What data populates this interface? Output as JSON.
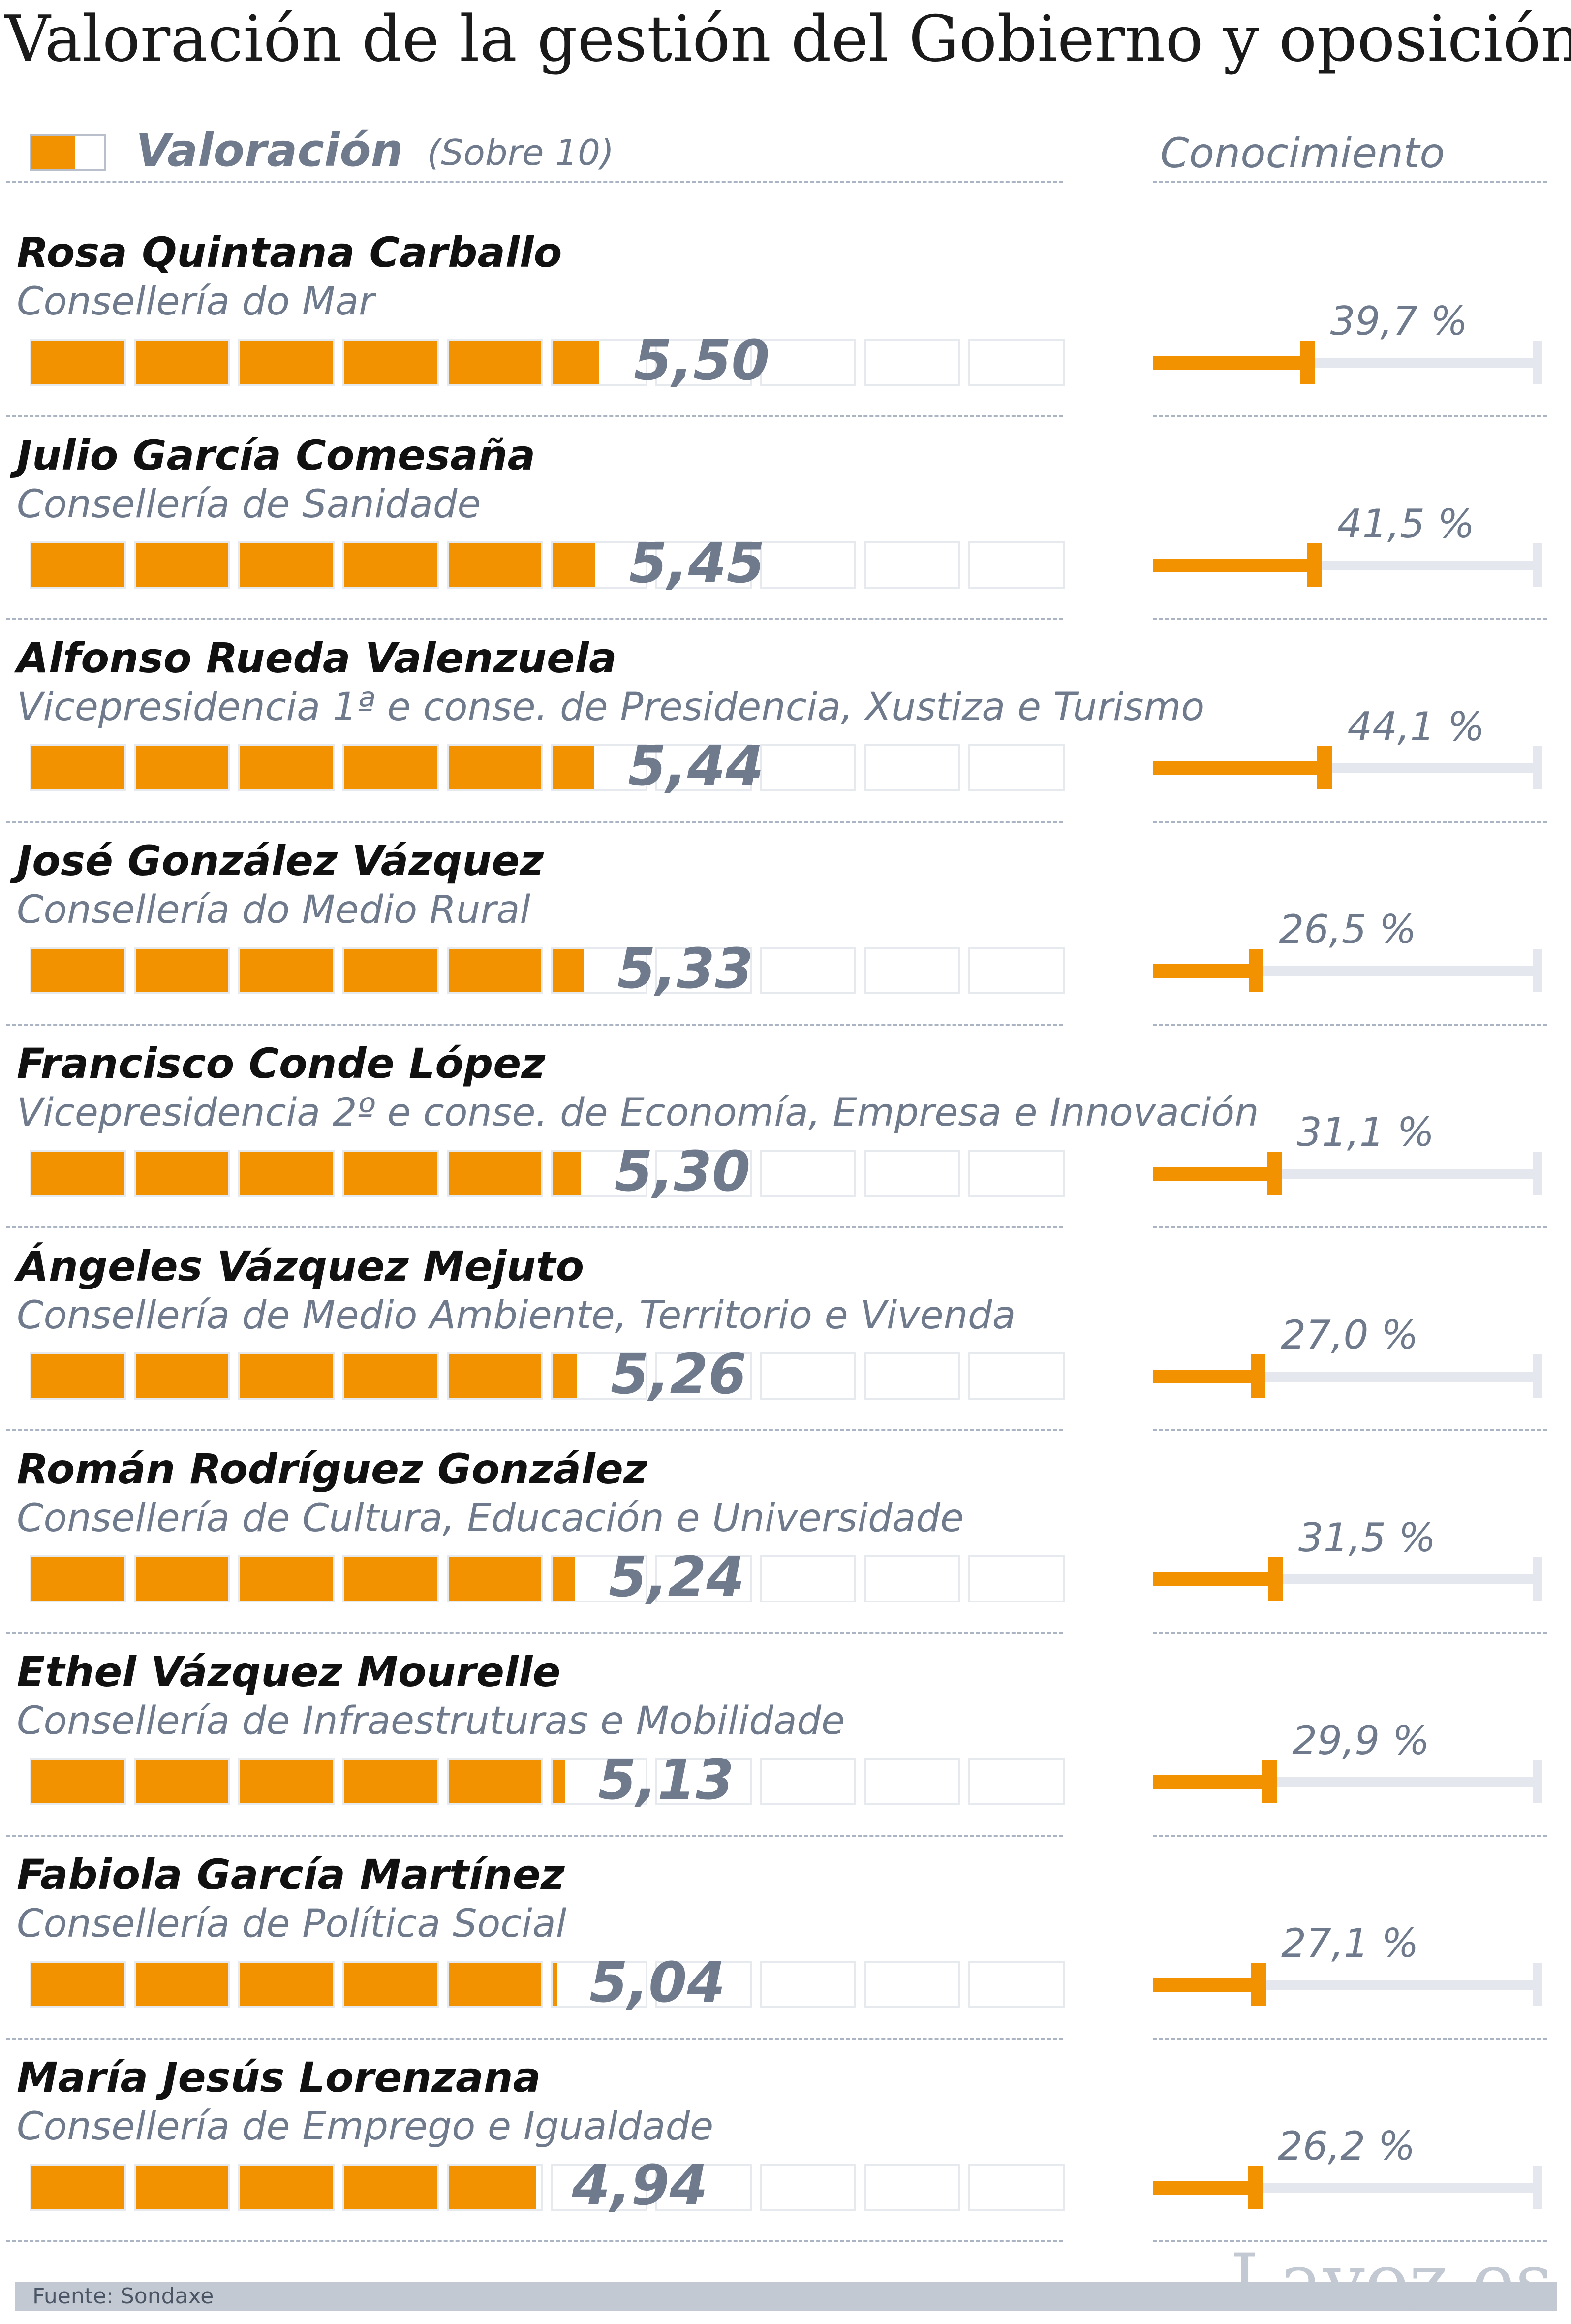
{
  "title": "Valoración de la gestión del Gobierno y oposición",
  "legend": {
    "label": "Valoración",
    "sublabel": "(Sobre 10)",
    "right_label": "Conocimiento"
  },
  "footer": {
    "source": "Fuente: Sondaxe",
    "brand": "Lavoz.es"
  },
  "colors": {
    "accent": "#f39200",
    "text_muted": "#6f7b8d",
    "track": "#e4e7ee"
  },
  "chart_data": {
    "type": "bar",
    "title": "Valoración de la gestión del Gobierno y oposición",
    "scale_max": 10,
    "knowledge_max": 100,
    "rows": [
      {
        "name": "Rosa Quintana Carballo",
        "dept": "Consellería do Mar",
        "score": 5.5,
        "score_label": "5,50",
        "knowledge": 39.7,
        "knowledge_label": "39,7 %"
      },
      {
        "name": "Julio García Comesaña",
        "dept": "Consellería de Sanidade",
        "score": 5.45,
        "score_label": "5,45",
        "knowledge": 41.5,
        "knowledge_label": "41,5 %"
      },
      {
        "name": "Alfonso Rueda Valenzuela",
        "dept": "Vicepresidencia 1ª e conse. de Presidencia, Xustiza e Turismo",
        "score": 5.44,
        "score_label": "5,44",
        "knowledge": 44.1,
        "knowledge_label": "44,1 %"
      },
      {
        "name": "José González Vázquez",
        "dept": "Consellería do Medio Rural",
        "score": 5.33,
        "score_label": "5,33",
        "knowledge": 26.5,
        "knowledge_label": "26,5 %"
      },
      {
        "name": "Francisco Conde López",
        "dept": "Vicepresidencia 2º e conse. de Economía, Empresa e Innovación",
        "score": 5.3,
        "score_label": "5,30",
        "knowledge": 31.1,
        "knowledge_label": "31,1 %"
      },
      {
        "name": "Ángeles Vázquez Mejuto",
        "dept": "Consellería de Medio Ambiente, Territorio e Vivenda",
        "score": 5.26,
        "score_label": "5,26",
        "knowledge": 27.0,
        "knowledge_label": "27,0 %"
      },
      {
        "name": "Román Rodríguez González",
        "dept": "Consellería de Cultura, Educación e Universidade",
        "score": 5.24,
        "score_label": "5,24",
        "knowledge": 31.5,
        "knowledge_label": "31,5 %"
      },
      {
        "name": "Ethel Vázquez Mourelle",
        "dept": "Consellería de Infraestruturas e Mobilidade",
        "score": 5.13,
        "score_label": "5,13",
        "knowledge": 29.9,
        "knowledge_label": "29,9 %"
      },
      {
        "name": "Fabiola García Martínez",
        "dept": "Consellería de Política Social",
        "score": 5.04,
        "score_label": "5,04",
        "knowledge": 27.1,
        "knowledge_label": "27,1 %"
      },
      {
        "name": "María Jesús Lorenzana",
        "dept": "Consellería de Emprego e Igualdade",
        "score": 4.94,
        "score_label": "4,94",
        "knowledge": 26.2,
        "knowledge_label": "26,2 %"
      }
    ]
  }
}
